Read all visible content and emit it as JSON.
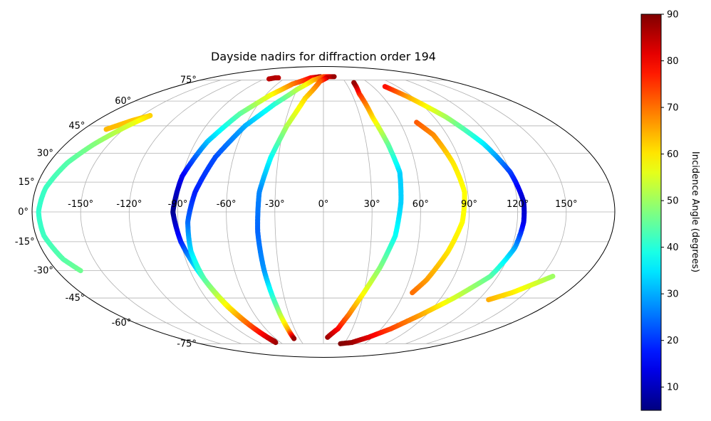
{
  "chart_data": {
    "type": "scatter",
    "projection": "mollweide",
    "title": "Dayside nadirs for diffraction order 194",
    "x_ticks": [
      "-150°",
      "-120°",
      "-90°",
      "-60°",
      "-30°",
      "0°",
      "30°",
      "60°",
      "90°",
      "120°",
      "150°"
    ],
    "y_ticks": [
      "75°",
      "60°",
      "45°",
      "30°",
      "15°",
      "0°",
      "-15°",
      "-30°",
      "-45°",
      "-60°",
      "-75°"
    ],
    "grid": true,
    "colorbar": {
      "label": "Incidence Angle (degrees)",
      "ticks": [
        "90",
        "80",
        "70",
        "60",
        "50",
        "40",
        "30",
        "20",
        "10"
      ],
      "range": [
        5,
        90
      ],
      "colormap": "jet"
    },
    "series": [
      {
        "points": [
          [
            -83,
            76,
            85
          ],
          [
            -77,
            77,
            86
          ],
          [
            -72,
            77,
            85
          ]
        ]
      },
      {
        "points": [
          [
            -163,
            43,
            64
          ],
          [
            -152,
            48,
            63
          ],
          [
            -143,
            51,
            62
          ]
        ]
      },
      {
        "points": [
          [
            -143,
            51,
            62
          ],
          [
            -150,
            45,
            55
          ],
          [
            -160,
            35,
            48
          ],
          [
            -168,
            25,
            44
          ],
          [
            -174,
            12,
            42
          ],
          [
            -176,
            0,
            41
          ],
          [
            -175,
            -12,
            42
          ],
          [
            -170,
            -24,
            44
          ],
          [
            -164,
            -30,
            46
          ]
        ]
      },
      {
        "points": [
          [
            -5,
            78,
            88
          ],
          [
            -20,
            77,
            80
          ],
          [
            -40,
            72,
            70
          ],
          [
            -55,
            64,
            58
          ],
          [
            -70,
            52,
            45
          ],
          [
            -82,
            36,
            32
          ],
          [
            -90,
            18,
            15
          ],
          [
            -93,
            0,
            6
          ],
          [
            -90,
            -15,
            18
          ],
          [
            -84,
            -32,
            38
          ],
          [
            -78,
            -48,
            55
          ],
          [
            -72,
            -62,
            70
          ],
          [
            -68,
            -70,
            80
          ],
          [
            -66,
            -73,
            88
          ]
        ]
      },
      {
        "points": [
          [
            -67,
            -74,
            88
          ],
          [
            -72,
            -63,
            75
          ],
          [
            -78,
            -50,
            60
          ],
          [
            -83,
            -35,
            45
          ],
          [
            -85,
            -20,
            35
          ],
          [
            -84,
            -5,
            25
          ],
          [
            -80,
            10,
            18
          ],
          [
            -72,
            28,
            22
          ],
          [
            -60,
            45,
            30
          ],
          [
            -45,
            58,
            40
          ],
          [
            -30,
            68,
            52
          ],
          [
            -15,
            75,
            63
          ],
          [
            0,
            78,
            72
          ],
          [
            10,
            78,
            82
          ],
          [
            18,
            78,
            88
          ]
        ]
      },
      {
        "points": [
          [
            5,
            77,
            85
          ],
          [
            -5,
            74,
            72
          ],
          [
            -18,
            62,
            62
          ],
          [
            -28,
            45,
            52
          ],
          [
            -35,
            28,
            38
          ],
          [
            -40,
            10,
            27
          ],
          [
            -41,
            -10,
            24
          ],
          [
            -40,
            -30,
            28
          ],
          [
            -38,
            -50,
            45
          ],
          [
            -37,
            -65,
            65
          ],
          [
            -37,
            -71,
            88
          ]
        ]
      },
      {
        "points": [
          [
            5,
            -70,
            88
          ],
          [
            15,
            -64,
            80
          ],
          [
            22,
            -55,
            70
          ],
          [
            30,
            -42,
            58
          ],
          [
            38,
            -28,
            48
          ],
          [
            45,
            -12,
            38
          ],
          [
            48,
            5,
            33
          ],
          [
            49,
            20,
            33
          ],
          [
            45,
            35,
            45
          ],
          [
            40,
            50,
            60
          ],
          [
            38,
            65,
            75
          ],
          [
            41,
            73,
            88
          ]
        ]
      },
      {
        "points": [
          [
            25,
            -75,
            90
          ],
          [
            40,
            -74,
            88
          ],
          [
            55,
            -70,
            82
          ],
          [
            70,
            -64,
            74
          ],
          [
            85,
            -55,
            66
          ],
          [
            100,
            -45,
            55
          ],
          [
            115,
            -33,
            45
          ],
          [
            122,
            -18,
            30
          ],
          [
            124,
            -5,
            14
          ],
          [
            124,
            5,
            10
          ],
          [
            120,
            20,
            20
          ],
          [
            112,
            35,
            35
          ],
          [
            100,
            50,
            50
          ],
          [
            85,
            63,
            65
          ],
          [
            75,
            70,
            78
          ]
        ]
      },
      {
        "points": [
          [
            73,
            47,
            72
          ],
          [
            80,
            40,
            68
          ],
          [
            85,
            25,
            60
          ],
          [
            88,
            10,
            58
          ],
          [
            86,
            -5,
            58
          ],
          [
            80,
            -20,
            60
          ],
          [
            72,
            -35,
            66
          ],
          [
            66,
            -42,
            70
          ]
        ]
      },
      {
        "points": [
          [
            128,
            -46,
            65
          ],
          [
            140,
            -42,
            60
          ],
          [
            150,
            -37,
            55
          ],
          [
            158,
            -33,
            50
          ]
        ]
      }
    ]
  }
}
